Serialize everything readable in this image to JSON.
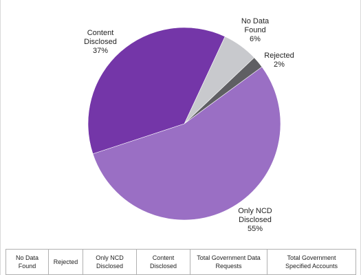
{
  "chart_data": {
    "type": "pie",
    "slices": [
      {
        "label": "No Data Found",
        "label_lines": [
          "No Data",
          "Found"
        ],
        "value": 6,
        "value_label": "6%",
        "color": "#c8c9cd"
      },
      {
        "label": "Rejected",
        "label_lines": [
          "Rejected"
        ],
        "value": 2,
        "value_label": "2%",
        "color": "#5f5f63"
      },
      {
        "label": "Only NCD Disclosed",
        "label_lines": [
          "Only NCD",
          "Disclosed"
        ],
        "value": 55,
        "value_label": "55%",
        "color": "#9a6fc4"
      },
      {
        "label": "Content Disclosed",
        "label_lines": [
          "Content",
          "Disclosed"
        ],
        "value": 37,
        "value_label": "37%",
        "color": "#7436a8"
      }
    ],
    "legend_placement": "bottom"
  },
  "legend_table": {
    "headers": [
      [
        "No Data",
        "Found"
      ],
      [
        "Rejected"
      ],
      [
        "Only NCD",
        "Disclosed"
      ],
      [
        "Content",
        "Disclosed"
      ],
      [
        "Total Government Data",
        "Requests"
      ],
      [
        "Total Government",
        "Specified Accounts"
      ]
    ]
  }
}
